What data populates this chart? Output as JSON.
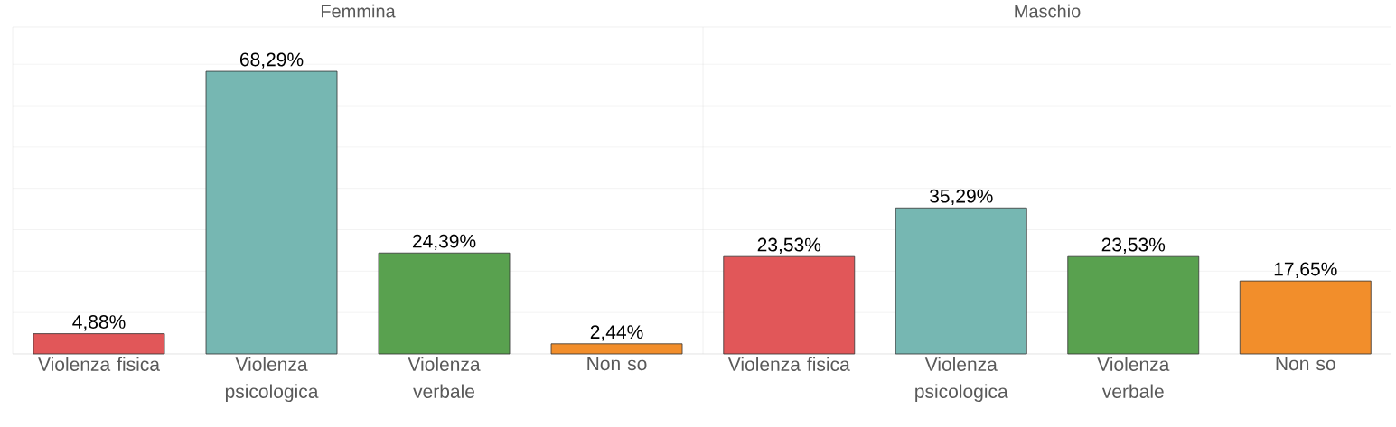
{
  "chart_data": [
    {
      "type": "bar",
      "title": "Femmina",
      "categories": [
        "Violenza fisica",
        "Violenza psicologica",
        "Violenza verbale",
        "Non so"
      ],
      "values": [
        4.88,
        68.29,
        24.39,
        2.44
      ],
      "colors": [
        "#e15759",
        "#76b7b2",
        "#59a14f",
        "#f28e2b"
      ],
      "data_labels": true,
      "value_labels": [
        "4,88%",
        "68,29%",
        "24,39%",
        "2,44%"
      ],
      "ylim": [
        0,
        79
      ],
      "yticks": [
        {
          "value": 0,
          "label": null
        },
        {
          "value": 10,
          "label": null
        },
        {
          "value": 20,
          "label": null
        },
        {
          "value": 30,
          "label": null
        },
        {
          "value": 40,
          "label": null
        },
        {
          "value": 50,
          "label": null
        },
        {
          "value": 60,
          "label": null
        },
        {
          "value": 70,
          "label": null
        }
      ],
      "grid": "y",
      "tick_labels": "x"
    },
    {
      "type": "bar",
      "title": "Maschio",
      "categories": [
        "Violenza fisica",
        "Violenza psicologica",
        "Violenza verbale",
        "Non so"
      ],
      "values": [
        23.53,
        35.29,
        23.53,
        17.65
      ],
      "colors": [
        "#e15759",
        "#76b7b2",
        "#59a14f",
        "#f28e2b"
      ],
      "data_labels": true,
      "value_labels": [
        "23,53%",
        "35,29%",
        "23,53%",
        "17,65%"
      ],
      "ylim": [
        0,
        79
      ],
      "yticks": [
        {
          "value": 0,
          "label": null
        },
        {
          "value": 10,
          "label": null
        },
        {
          "value": 20,
          "label": null
        },
        {
          "value": 30,
          "label": null
        },
        {
          "value": 40,
          "label": null
        },
        {
          "value": 50,
          "label": null
        },
        {
          "value": 60,
          "label": null
        },
        {
          "value": 70,
          "label": null
        }
      ],
      "grid": "y",
      "tick_labels": "x"
    }
  ]
}
